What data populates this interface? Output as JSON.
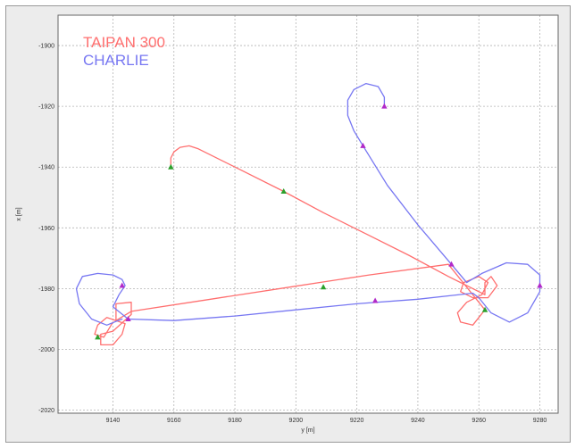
{
  "chart_data": {
    "type": "line",
    "xlabel": "y [m]",
    "ylabel": "x [m]",
    "xlim": [
      9122,
      9286
    ],
    "ylim": [
      -2021,
      -1890
    ],
    "x_ticks": [
      9140,
      9160,
      9180,
      9200,
      9220,
      9240,
      9260,
      9280
    ],
    "y_ticks": [
      -1900,
      -1920,
      -1940,
      -1960,
      -1980,
      -2000,
      -2020
    ],
    "grid": true,
    "legend_position": "top-left",
    "colors": {
      "background": "#ececec",
      "plot_background": "#ffffff",
      "grid": "#b4b4b4"
    },
    "series": [
      {
        "name": "TAIPAN 300",
        "color": "#ff6f6f",
        "x": [
          9159,
          9159,
          9160,
          9162,
          9165,
          9168,
          9182,
          9196,
          9209,
          9223,
          9237,
          9250,
          9262,
          9262,
          9264,
          9266,
          9263,
          9258,
          9254,
          9255,
          9260,
          9263,
          9261,
          9256,
          9253,
          9254,
          9258,
          9262,
          9250,
          9224,
          9198,
          9172,
          9146,
          9141,
          9141,
          9146,
          9146,
          9140,
          9136,
          9136,
          9140,
          9143,
          9144,
          9138,
          9135,
          9134,
          9137,
          9140
        ],
        "y": [
          -1940,
          -1937,
          -1935,
          -1933.5,
          -1933,
          -1934,
          -1941,
          -1948,
          -1955,
          -1962,
          -1969,
          -1976,
          -1982,
          -1978,
          -1976,
          -1979,
          -1983,
          -1983,
          -1981,
          -1978,
          -1976,
          -1978,
          -1982,
          -1984.5,
          -1988,
          -1991,
          -1992,
          -1987,
          -1972,
          -1975.5,
          -1979.5,
          -1983.5,
          -1987.5,
          -1990.5,
          -1985,
          -1984.5,
          -1988.5,
          -1994,
          -1995,
          -1998.5,
          -1998.5,
          -1995,
          -1991.5,
          -1989.5,
          -1992,
          -1995,
          -1996,
          -1991
        ],
        "markers": [
          {
            "x": 9159,
            "y": -1940,
            "color": "#2ca02c"
          },
          {
            "x": 9196,
            "y": -1948,
            "color": "#2ca02c"
          },
          {
            "x": 9262,
            "y": -1987,
            "color": "#2ca02c"
          },
          {
            "x": 9209,
            "y": -1979.5,
            "color": "#2ca02c"
          },
          {
            "x": 9135,
            "y": -1996,
            "color": "#2ca02c"
          }
        ]
      },
      {
        "name": "CHARLIE",
        "color": "#7777f2",
        "x": [
          9229,
          9229,
          9227,
          9223,
          9219,
          9217,
          9217,
          9219,
          9222,
          9230,
          9240,
          9251,
          9256,
          9261,
          9269,
          9276,
          9280,
          9280,
          9276,
          9270,
          9264,
          9260,
          9258,
          9240,
          9220,
          9200,
          9180,
          9160,
          9145,
          9140,
          9142,
          9144,
          9143,
          9140,
          9135,
          9130,
          9128,
          9129,
          9133,
          9138,
          9143
        ],
        "y": [
          -1920,
          -1917,
          -1913.5,
          -1912.5,
          -1914.5,
          -1918,
          -1923,
          -1928,
          -1933,
          -1946,
          -1959,
          -1972,
          -1978,
          -1975,
          -1971.5,
          -1972,
          -1975.5,
          -1981,
          -1988,
          -1991,
          -1988,
          -1983,
          -1981.5,
          -1983.5,
          -1985,
          -1987,
          -1989,
          -1990.5,
          -1990,
          -1986,
          -1982,
          -1979,
          -1977,
          -1975.5,
          -1975,
          -1976,
          -1980,
          -1985,
          -1990,
          -1992,
          -1990
        ],
        "markers": [
          {
            "x": 9229,
            "y": -1920,
            "color": "#b12ac9"
          },
          {
            "x": 9222,
            "y": -1933,
            "color": "#b12ac9"
          },
          {
            "x": 9251,
            "y": -1972,
            "color": "#b12ac9"
          },
          {
            "x": 9280,
            "y": -1979,
            "color": "#b12ac9"
          },
          {
            "x": 9226,
            "y": -1984,
            "color": "#b12ac9"
          },
          {
            "x": 9143,
            "y": -1979,
            "color": "#b12ac9"
          },
          {
            "x": 9145,
            "y": -1990,
            "color": "#b12ac9"
          }
        ]
      }
    ]
  }
}
